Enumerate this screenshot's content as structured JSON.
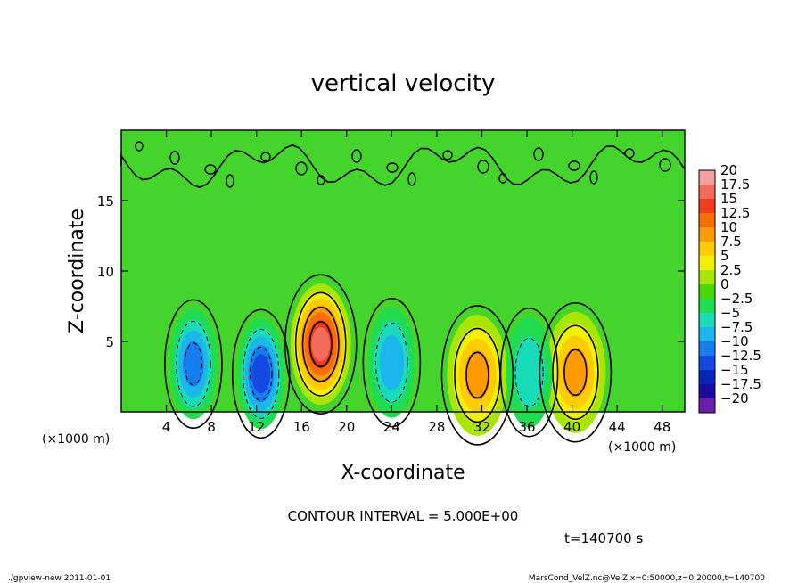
{
  "chart_data": {
    "type": "heatmap",
    "title": "vertical velocity",
    "xlabel": "X-coordinate",
    "ylabel": "Z-coordinate",
    "x_unit": "(×1000 m)",
    "y_unit": "(×1000 m)",
    "xlim": [
      0,
      50
    ],
    "ylim": [
      0,
      20
    ],
    "x_ticks": [
      "4",
      "8",
      "12",
      "16",
      "20",
      "24",
      "28",
      "32",
      "36",
      "40",
      "44",
      "48"
    ],
    "y_ticks": [
      "5",
      "10",
      "15"
    ],
    "colorbar_labels": [
      "20",
      "17.5",
      "15",
      "12.5",
      "10",
      "7.5",
      "5",
      "2.5",
      "0",
      "−2.5",
      "−5",
      "−7.5",
      "−10",
      "−12.5",
      "−15",
      "−17.5",
      "−20"
    ],
    "colorbar_colors": [
      "#f5a0a0",
      "#f56b5a",
      "#f03c1e",
      "#fa6e00",
      "#ff9b00",
      "#ffcc00",
      "#f0f000",
      "#a8e600",
      "#4bd800",
      "#20dc50",
      "#18dcb8",
      "#1ab6ec",
      "#147ef0",
      "#1448e0",
      "#0a24b8",
      "#1e0aa0",
      "#6a1eaa"
    ],
    "features": [
      {
        "x": 17.7,
        "z": 4.8,
        "w": 17.5,
        "kind": "updraft"
      },
      {
        "x": 31.6,
        "z": 2.6,
        "w": 10,
        "kind": "updraft"
      },
      {
        "x": 40.3,
        "z": 2.8,
        "w": 10,
        "kind": "updraft"
      },
      {
        "x": 6.4,
        "z": 3.4,
        "w": -10,
        "kind": "downdraft"
      },
      {
        "x": 12.4,
        "z": 2.7,
        "w": -12.5,
        "kind": "downdraft"
      },
      {
        "x": 24.0,
        "z": 3.5,
        "w": -7.5,
        "kind": "downdraft"
      },
      {
        "x": 36.2,
        "z": 2.8,
        "w": -5,
        "kind": "downdraft"
      }
    ],
    "contour_interval_label": "CONTOUR INTERVAL = 5.000E+00",
    "time_label": "t=140700 s"
  },
  "footer": {
    "left": "./gpview-new  2011-01-01",
    "right": "MarsCond_VelZ.nc@VelZ,x=0:50000,z=0:20000,t=140700"
  }
}
